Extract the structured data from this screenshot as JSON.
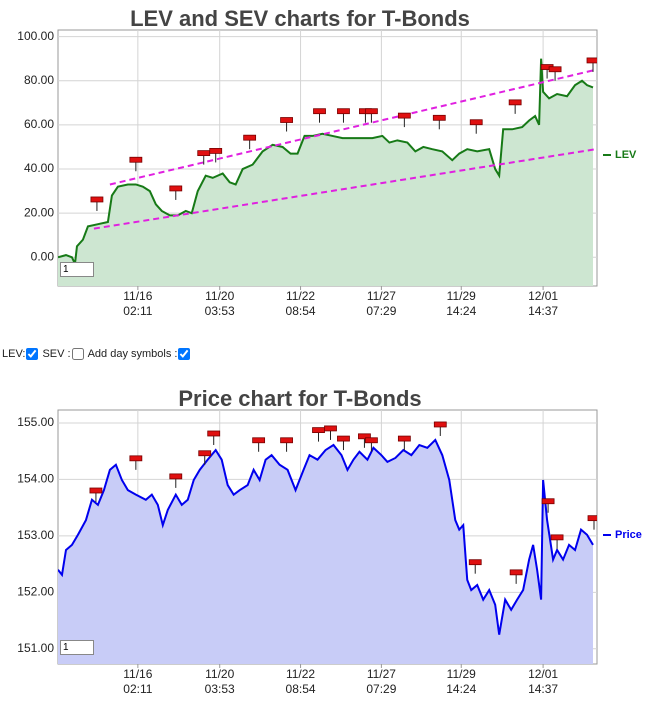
{
  "chart_data": [
    {
      "type": "area",
      "title": "LEV and SEV charts for T-Bonds",
      "input_value": "1",
      "xlim": [
        0,
        540
      ],
      "ylim": [
        -13,
        103
      ],
      "xticks": [
        {
          "value": 80,
          "label": "11/16\n02:11"
        },
        {
          "value": 162,
          "label": "11/20\n03:53"
        },
        {
          "value": 243,
          "label": "11/22\n08:54"
        },
        {
          "value": 324,
          "label": "11/27\n07:29"
        },
        {
          "value": 404,
          "label": "11/29\n14:24"
        },
        {
          "value": 486,
          "label": "12/01\n14:37"
        }
      ],
      "yticks": [
        {
          "value": 0,
          "label": "0.00"
        },
        {
          "value": 20,
          "label": "20.00"
        },
        {
          "value": 40,
          "label": "40.00"
        },
        {
          "value": 60,
          "label": "60.00"
        },
        {
          "value": 80,
          "label": "80.00"
        },
        {
          "value": 100,
          "label": "100.00"
        }
      ],
      "grid": true,
      "legend": "right",
      "series": [
        {
          "name": "LEV",
          "color": "#177a17",
          "fill": "#cde6d1",
          "x": [
            0,
            8,
            14,
            17,
            19,
            25,
            30,
            40,
            50,
            54,
            60,
            70,
            78,
            85,
            92,
            98,
            104,
            112,
            120,
            128,
            134,
            140,
            148,
            155,
            165,
            172,
            178,
            185,
            195,
            205,
            215,
            225,
            233,
            240,
            247,
            255,
            265,
            275,
            285,
            295,
            305,
            315,
            325,
            332,
            340,
            350,
            358,
            366,
            375,
            385,
            395,
            402,
            410,
            420,
            432,
            438,
            442,
            446,
            455,
            465,
            472,
            478,
            482,
            484,
            486,
            492,
            500,
            510,
            518,
            525,
            530,
            536
          ],
          "values": [
            0,
            1,
            0,
            -3,
            5,
            8,
            14,
            15,
            16,
            28,
            32,
            33,
            33,
            32,
            30,
            24,
            21,
            19,
            19,
            21,
            20,
            30,
            37,
            36,
            38,
            34,
            33,
            40,
            42,
            48,
            51,
            50,
            47,
            47,
            55,
            55,
            56,
            55,
            54,
            54,
            54,
            54,
            55,
            52,
            53,
            52,
            48,
            50,
            49,
            48,
            44,
            47,
            49,
            48,
            49,
            40,
            37,
            58,
            58,
            59,
            62,
            64,
            60,
            90,
            75,
            72,
            74,
            73,
            78,
            80,
            78,
            77
          ]
        }
      ],
      "trendlines": [
        {
          "color": "#e020e0",
          "x": [
            52,
            539
          ],
          "y": [
            33,
            85
          ]
        },
        {
          "color": "#e020e0",
          "x": [
            36,
            539
          ],
          "y": [
            13,
            49
          ]
        }
      ],
      "markers": {
        "x": [
          39,
          78,
          118,
          146,
          158,
          192,
          229,
          262,
          286,
          308,
          314,
          347,
          382,
          419,
          458,
          490,
          498,
          536
        ],
        "y": [
          21,
          39,
          26,
          42,
          43,
          49,
          57,
          61,
          61,
          61,
          61,
          59,
          58,
          56,
          65,
          81,
          80,
          84
        ]
      }
    },
    {
      "type": "area",
      "title": "Price chart for T-Bonds",
      "input_value": "1",
      "xlim": [
        0,
        540
      ],
      "ylim": [
        150.73,
        155.23
      ],
      "xticks": [
        {
          "value": 80,
          "label": "11/16\n02:11"
        },
        {
          "value": 162,
          "label": "11/20\n03:53"
        },
        {
          "value": 243,
          "label": "11/22\n08:54"
        },
        {
          "value": 324,
          "label": "11/27\n07:29"
        },
        {
          "value": 404,
          "label": "11/29\n14:24"
        },
        {
          "value": 486,
          "label": "12/01\n14:37"
        }
      ],
      "yticks": [
        {
          "value": 151,
          "label": "151.00"
        },
        {
          "value": 152,
          "label": "152.00"
        },
        {
          "value": 153,
          "label": "153.00"
        },
        {
          "value": 154,
          "label": "154.00"
        },
        {
          "value": 155,
          "label": "155.00"
        }
      ],
      "grid": true,
      "legend": "right",
      "series": [
        {
          "name": "Price",
          "color": "#0000ee",
          "fill": "#c8ccf7",
          "x": [
            0,
            4,
            8,
            14,
            20,
            28,
            34,
            40,
            46,
            52,
            58,
            64,
            70,
            78,
            88,
            94,
            100,
            105,
            110,
            118,
            124,
            130,
            136,
            142,
            150,
            158,
            164,
            170,
            176,
            182,
            190,
            196,
            202,
            208,
            214,
            222,
            230,
            238,
            246,
            252,
            260,
            268,
            276,
            284,
            290,
            296,
            302,
            310,
            316,
            324,
            330,
            338,
            346,
            354,
            362,
            370,
            378,
            385,
            392,
            398,
            402,
            406,
            410,
            414,
            420,
            426,
            432,
            438,
            442,
            448,
            454,
            460,
            466,
            472,
            476,
            480,
            484,
            486,
            490,
            496,
            500,
            506,
            512,
            518,
            524,
            530,
            536
          ],
          "values": [
            152.4,
            152.31,
            152.75,
            152.84,
            153.02,
            153.28,
            153.64,
            153.55,
            153.81,
            154.17,
            154.26,
            153.99,
            153.81,
            153.73,
            153.64,
            153.73,
            153.55,
            153.19,
            153.46,
            153.73,
            153.55,
            153.64,
            153.99,
            154.17,
            154.35,
            154.52,
            154.35,
            153.9,
            153.73,
            153.81,
            153.9,
            154.17,
            153.99,
            154.35,
            154.43,
            154.26,
            154.17,
            153.81,
            154.17,
            154.43,
            154.35,
            154.52,
            154.61,
            154.43,
            154.17,
            154.35,
            154.49,
            154.35,
            154.56,
            154.43,
            154.31,
            154.38,
            154.52,
            154.43,
            154.61,
            154.56,
            154.7,
            154.43,
            153.99,
            153.28,
            153.11,
            153.19,
            152.22,
            152.04,
            152.13,
            151.87,
            152.04,
            151.78,
            151.25,
            151.87,
            151.69,
            151.87,
            152.04,
            152.58,
            152.84,
            152.4,
            151.87,
            153.99,
            153.28,
            152.58,
            152.75,
            152.58,
            152.84,
            152.75,
            153.11,
            153.02,
            152.84
          ]
        }
      ],
      "markers": {
        "x": [
          38,
          78,
          118,
          147,
          156,
          201,
          229,
          261,
          273,
          286,
          307,
          314,
          347,
          383,
          418,
          459,
          491,
          500,
          537
        ],
        "y": [
          153.6,
          154.17,
          153.85,
          154.26,
          154.61,
          154.49,
          154.49,
          154.67,
          154.7,
          154.52,
          154.56,
          154.49,
          154.52,
          154.77,
          152.33,
          152.15,
          153.41,
          152.77,
          153.11
        ]
      }
    }
  ],
  "controls": [
    {
      "label": "LEV:",
      "checked": true
    },
    {
      "label": "SEV :",
      "checked": false
    },
    {
      "label": "Add day symbols :",
      "checked": true
    }
  ]
}
